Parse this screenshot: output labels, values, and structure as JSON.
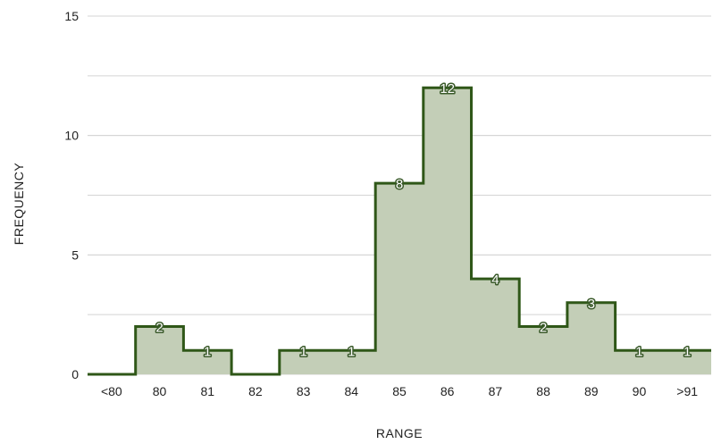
{
  "chart_data": {
    "type": "area",
    "step": true,
    "categories": [
      "<80",
      "80",
      "81",
      "82",
      "83",
      "84",
      "85",
      "86",
      "87",
      "88",
      "89",
      "90",
      ">91"
    ],
    "values": [
      0,
      2,
      1,
      0,
      1,
      1,
      8,
      12,
      4,
      2,
      3,
      1,
      1
    ],
    "data_labels": [
      "",
      "2",
      "1",
      "",
      "1",
      "1",
      "8",
      "12",
      "4",
      "2",
      "3",
      "1",
      "1"
    ],
    "title": "",
    "xlabel": "RANGE",
    "ylabel": "FREQUENCY",
    "ylim": [
      0,
      15
    ],
    "yticks": [
      0,
      5,
      10,
      15
    ],
    "grid": true,
    "legend": "none",
    "colors": {
      "line": "#2f5718",
      "fill": "#c3ceb7",
      "grid": "#d4d4d4",
      "text": "#222222"
    }
  }
}
